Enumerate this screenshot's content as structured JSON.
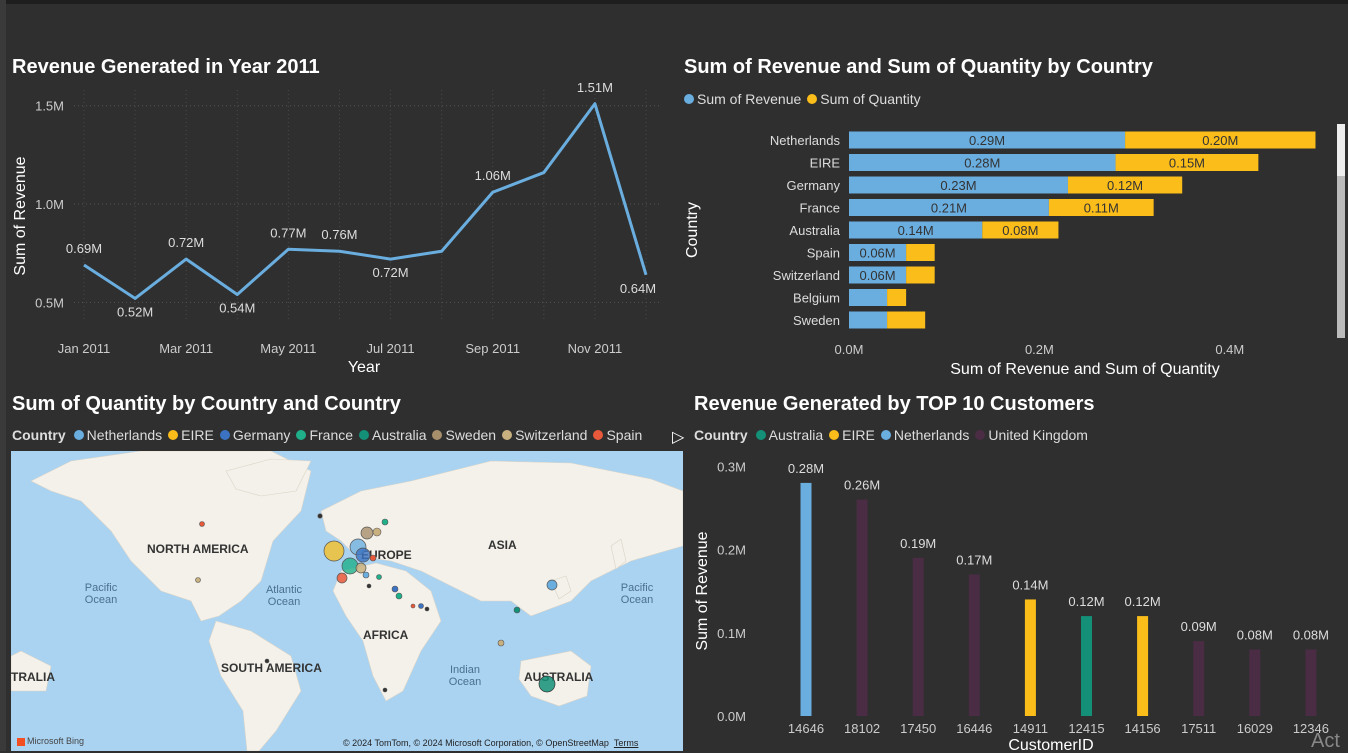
{
  "panels": {
    "line_title": "Revenue Generated in Year 2011",
    "bar_title": "Sum of Revenue and Sum of Quantity by Country",
    "map_title": "Sum of Quantity by Country and Country",
    "top_title": "Revenue Generated by TOP 10 Customers"
  },
  "colors": {
    "blue": "#6aaee0",
    "yellow": "#fbbd1a",
    "purple": "#4a2c44",
    "teal": "#149078",
    "bg": "#2f2f2f"
  },
  "bar_legend": [
    {
      "label": "Sum of Revenue",
      "color": "#6aaee0"
    },
    {
      "label": "Sum of Quantity",
      "color": "#fbbd1a"
    }
  ],
  "map_legend": {
    "title": "Country",
    "items": [
      {
        "label": "Netherlands",
        "color": "#6aaee0"
      },
      {
        "label": "EIRE",
        "color": "#fbbd1a"
      },
      {
        "label": "Germany",
        "color": "#3b73c2"
      },
      {
        "label": "France",
        "color": "#1fb08a"
      },
      {
        "label": "Australia",
        "color": "#149078"
      },
      {
        "label": "Sweden",
        "color": "#a88f6c"
      },
      {
        "label": "Switzerland",
        "color": "#c9b17f"
      },
      {
        "label": "Spain",
        "color": "#e8583a"
      }
    ]
  },
  "top_legend": {
    "title": "Country",
    "items": [
      {
        "label": "Australia",
        "color": "#149078"
      },
      {
        "label": "EIRE",
        "color": "#fbbd1a"
      },
      {
        "label": "Netherlands",
        "color": "#6aaee0"
      },
      {
        "label": "United Kingdom",
        "color": "#4a2c44"
      }
    ]
  },
  "map": {
    "labels": [
      "NORTH AMERICA",
      "EUROPE",
      "ASIA",
      "AFRICA",
      "SOUTH AMERICA",
      "AUSTRALIA",
      "TRALIA"
    ],
    "oceans": [
      "Pacific Ocean",
      "Atlantic Ocean",
      "Pacific Ocean",
      "Indian Ocean"
    ],
    "credit": "© 2024 TomTom, © 2024 Microsoft Corporation, © OpenStreetMap",
    "terms": "Terms",
    "bing": "Microsoft Bing"
  },
  "watermark": "Act",
  "chart_data": [
    {
      "type": "line",
      "title": "Revenue Generated in Year 2011",
      "xlabel": "Year",
      "ylabel": "Sum of Revenue",
      "x": [
        "Jan 2011",
        "Feb 2011",
        "Mar 2011",
        "Apr 2011",
        "May 2011",
        "Jun 2011",
        "Jul 2011",
        "Aug 2011",
        "Sep 2011",
        "Oct 2011",
        "Nov 2011",
        "Dec 2011"
      ],
      "xtick_labels": [
        "Jan 2011",
        "Mar 2011",
        "May 2011",
        "Jul 2011",
        "Sep 2011",
        "Nov 2011"
      ],
      "values": [
        0.69,
        0.52,
        0.72,
        0.54,
        0.77,
        0.76,
        0.72,
        0.76,
        1.06,
        1.16,
        1.51,
        0.64
      ],
      "data_labels": [
        "0.69M",
        "0.52M",
        "0.72M",
        "0.54M",
        "0.77M",
        "0.76M",
        "0.72M",
        "",
        "1.06M",
        "",
        "1.51M",
        "0.64M"
      ],
      "yticks": [
        0.5,
        1.0,
        1.5
      ],
      "ytick_labels": [
        "0.5M",
        "1.0M",
        "1.5M"
      ],
      "ylim": [
        0.4,
        1.58
      ],
      "grid": true,
      "color": "#6aaee0"
    },
    {
      "type": "bar",
      "orientation": "horizontal",
      "stacked": true,
      "title": "Sum of Revenue and Sum of Quantity by Country",
      "xlabel": "Sum of Revenue and Sum of Quantity",
      "ylabel": "Country",
      "categories": [
        "Netherlands",
        "EIRE",
        "Germany",
        "France",
        "Australia",
        "Spain",
        "Switzerland",
        "Belgium",
        "Sweden"
      ],
      "series": [
        {
          "name": "Sum of Revenue",
          "values": [
            0.29,
            0.28,
            0.23,
            0.21,
            0.14,
            0.06,
            0.06,
            0.04,
            0.04
          ],
          "labels": [
            "0.29M",
            "0.28M",
            "0.23M",
            "0.21M",
            "0.14M",
            "0.06M",
            "0.06M",
            "",
            ""
          ],
          "color": "#6aaee0"
        },
        {
          "name": "Sum of Quantity",
          "values": [
            0.2,
            0.15,
            0.12,
            0.11,
            0.08,
            0.03,
            0.03,
            0.02,
            0.04
          ],
          "labels": [
            "0.20M",
            "0.15M",
            "0.12M",
            "0.11M",
            "0.08M",
            "",
            "",
            "",
            ""
          ],
          "color": "#fbbd1a"
        }
      ],
      "xticks": [
        0,
        0.2,
        0.4
      ],
      "xtick_labels": [
        "0.0M",
        "0.2M",
        "0.4M"
      ],
      "xlim": [
        0,
        0.5
      ],
      "legend": "top-left"
    },
    {
      "type": "bar",
      "title": "Revenue Generated by TOP 10 Customers",
      "xlabel": "CustomerID",
      "ylabel": "Sum of Revenue",
      "categories": [
        "14646",
        "18102",
        "17450",
        "16446",
        "14911",
        "12415",
        "14156",
        "17511",
        "16029",
        "12346"
      ],
      "values": [
        0.28,
        0.26,
        0.19,
        0.17,
        0.14,
        0.12,
        0.12,
        0.09,
        0.08,
        0.08
      ],
      "data_labels": [
        "0.28M",
        "0.26M",
        "0.19M",
        "0.17M",
        "0.14M",
        "0.12M",
        "0.12M",
        "0.09M",
        "0.08M",
        "0.08M"
      ],
      "countries": [
        "Netherlands",
        "United Kingdom",
        "United Kingdom",
        "United Kingdom",
        "EIRE",
        "Australia",
        "EIRE",
        "United Kingdom",
        "United Kingdom",
        "United Kingdom"
      ],
      "bar_colors": [
        "#6aaee0",
        "#4a2c44",
        "#4a2c44",
        "#4a2c44",
        "#fbbd1a",
        "#149078",
        "#fbbd1a",
        "#4a2c44",
        "#4a2c44",
        "#4a2c44"
      ],
      "yticks": [
        0,
        0.1,
        0.2,
        0.3
      ],
      "ytick_labels": [
        "0.0M",
        "0.1M",
        "0.2M",
        "0.3M"
      ],
      "ylim": [
        0,
        0.3
      ],
      "legend": "top-left"
    }
  ]
}
